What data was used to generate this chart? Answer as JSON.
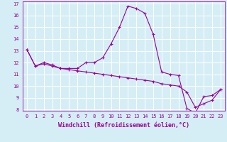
{
  "xlabel": "Windchill (Refroidissement éolien,°C)",
  "line1_x": [
    0,
    1,
    2,
    3,
    4,
    5,
    6,
    7,
    8,
    9,
    10,
    11,
    12,
    13,
    14,
    15,
    16,
    17,
    18,
    19,
    20,
    21,
    22,
    23
  ],
  "line1_y": [
    13.1,
    11.7,
    12.0,
    11.8,
    11.5,
    11.5,
    11.5,
    12.0,
    12.0,
    12.4,
    13.6,
    15.0,
    16.8,
    16.6,
    16.2,
    14.4,
    11.2,
    11.0,
    10.9,
    8.1,
    7.7,
    9.1,
    9.2,
    9.7
  ],
  "line2_x": [
    0,
    1,
    2,
    3,
    4,
    5,
    6,
    7,
    8,
    9,
    10,
    11,
    12,
    13,
    14,
    15,
    16,
    17,
    18,
    19,
    20,
    21,
    22,
    23
  ],
  "line2_y": [
    13.1,
    11.7,
    11.9,
    11.7,
    11.5,
    11.4,
    11.3,
    11.2,
    11.1,
    11.0,
    10.9,
    10.8,
    10.7,
    10.6,
    10.5,
    10.4,
    10.2,
    10.1,
    10.0,
    9.5,
    8.2,
    8.5,
    8.8,
    9.7
  ],
  "color": "#990099",
  "bg_color": "#d5eef5",
  "grid_color": "#ffffff",
  "ylim": [
    7.9,
    17.2
  ],
  "xlim": [
    -0.5,
    23.5
  ],
  "yticks": [
    8,
    9,
    10,
    11,
    12,
    13,
    14,
    15,
    16,
    17
  ],
  "xticks": [
    0,
    1,
    2,
    3,
    4,
    5,
    6,
    7,
    8,
    9,
    10,
    11,
    12,
    13,
    14,
    15,
    16,
    17,
    18,
    19,
    20,
    21,
    22,
    23
  ],
  "tick_fontsize": 5.0,
  "xlabel_fontsize": 6.0,
  "linewidth": 0.8,
  "markersize": 2.5
}
